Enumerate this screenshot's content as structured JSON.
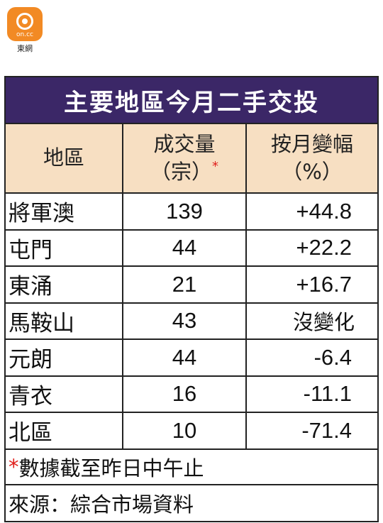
{
  "logo": {
    "sub": "on.cc",
    "text": "東網"
  },
  "table": {
    "title": "主要地區今月二手交投",
    "headers": {
      "area": "地區",
      "volume_line1": "成交量",
      "volume_line2": "（宗）",
      "volume_mark": "*",
      "change_line1": "按月變幅",
      "change_line2": "（%）"
    },
    "rows": [
      {
        "area": "將軍澳",
        "volume": "139",
        "change": "+44.8"
      },
      {
        "area": "屯門",
        "volume": "44",
        "change": "+22.2"
      },
      {
        "area": "東涌",
        "volume": "21",
        "change": "+16.7"
      },
      {
        "area": "馬鞍山",
        "volume": "43",
        "change": "沒變化"
      },
      {
        "area": "元朗",
        "volume": "44",
        "change": "-6.4"
      },
      {
        "area": "青衣",
        "volume": "16",
        "change": "-11.1"
      },
      {
        "area": "北區",
        "volume": "10",
        "change": "-71.4"
      }
    ],
    "note_mark": "*",
    "note": "數據截至昨日中午止",
    "source": "來源：綜合市場資料"
  },
  "colors": {
    "title_bg": "#3b2767",
    "header_bg": "#f7dfc2",
    "logo": "#f28a24",
    "asterisk": "#e0201c"
  }
}
